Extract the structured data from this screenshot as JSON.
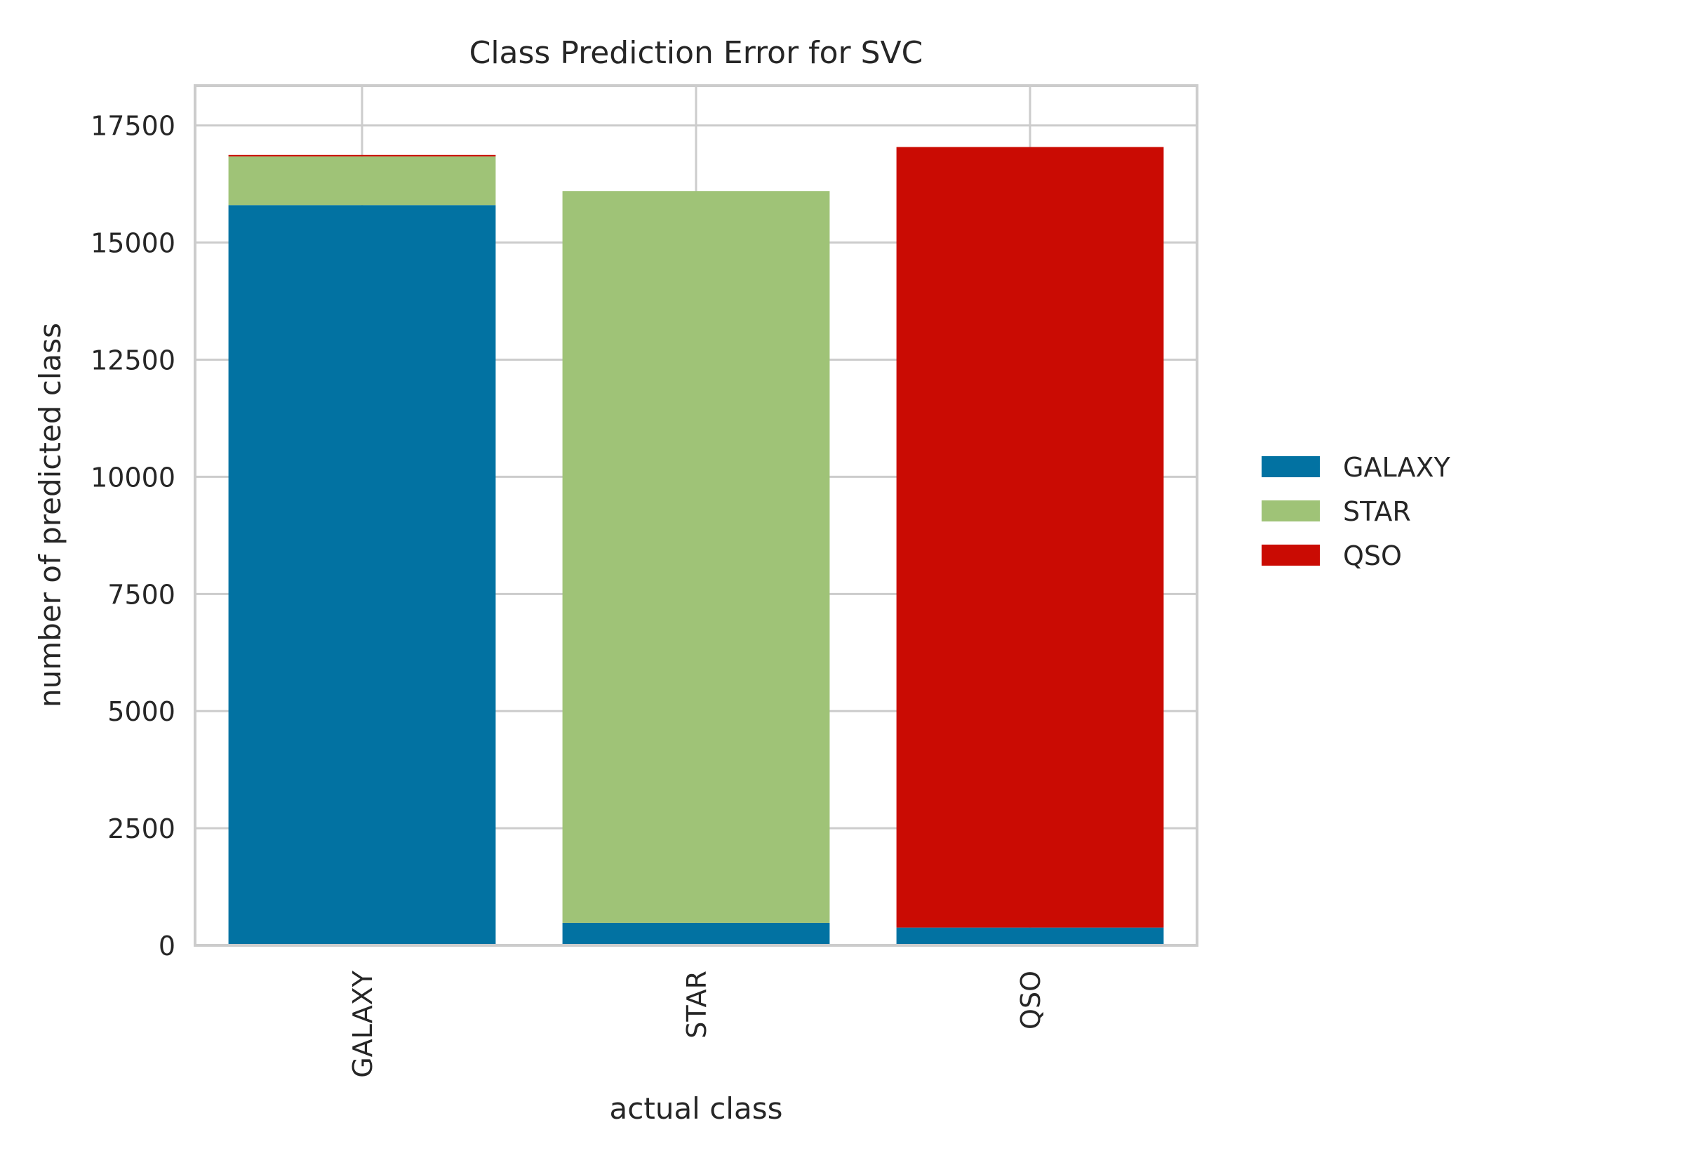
{
  "chart_data": {
    "type": "bar",
    "stacked": true,
    "title": "Class Prediction Error for SVC",
    "xlabel": "actual class",
    "ylabel": "number of predicted class",
    "categories": [
      "GALAXY",
      "STAR",
      "QSO"
    ],
    "series": [
      {
        "name": "GALAXY",
        "color": "#0272a2",
        "values": [
          15800,
          480,
          380
        ]
      },
      {
        "name": "STAR",
        "color": "#9fc377",
        "values": [
          1040,
          15620,
          0
        ]
      },
      {
        "name": "QSO",
        "color": "#ca0b03",
        "values": [
          30,
          0,
          16660
        ]
      }
    ],
    "ylim": [
      0,
      18350
    ],
    "yticks": [
      0,
      2500,
      5000,
      7500,
      10000,
      12500,
      15000,
      17500
    ],
    "ytick_labels": [
      "0",
      "2500",
      "5000",
      "7500",
      "10000",
      "12500",
      "15000",
      "17500"
    ],
    "grid": true,
    "legend_position": "right"
  }
}
